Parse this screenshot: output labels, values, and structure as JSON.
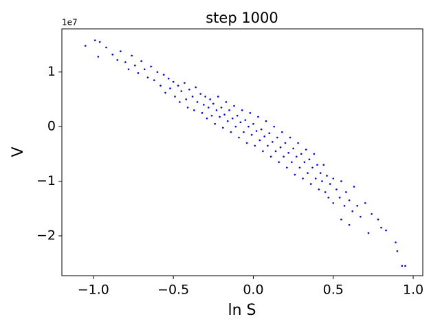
{
  "chart_data": {
    "type": "scatter",
    "title": "step 1000",
    "x_label": "ln S",
    "y_label": "V",
    "y_offset_label": "1e7",
    "color": "#0000ff",
    "xlim": [
      -1.197,
      1.06
    ],
    "ylim": [
      -2.73,
      1.79
    ],
    "xticks": [
      {
        "value": -1.0,
        "label": "−1.0"
      },
      {
        "value": -0.5,
        "label": "−0.5"
      },
      {
        "value": 0.0,
        "label": "0.0"
      },
      0.5,
      {
        "value": 1.0,
        "label": "1.0"
      }
    ],
    "yticks": [
      {
        "value": -2,
        "label": "−2"
      },
      {
        "value": -1,
        "label": "−1"
      },
      0,
      1
    ],
    "x": [
      -1.05,
      -0.99,
      -0.96,
      -0.97,
      -0.92,
      -0.88,
      -0.85,
      -0.83,
      -0.8,
      -0.78,
      -0.76,
      -0.74,
      -0.72,
      -0.7,
      -0.68,
      -0.66,
      -0.64,
      -0.62,
      -0.6,
      -0.58,
      -0.56,
      -0.55,
      -0.53,
      -0.52,
      -0.5,
      -0.49,
      -0.47,
      -0.46,
      -0.45,
      -0.43,
      -0.42,
      -0.41,
      -0.4,
      -0.38,
      -0.37,
      -0.36,
      -0.35,
      -0.33,
      -0.32,
      -0.31,
      -0.3,
      -0.29,
      -0.28,
      -0.27,
      -0.26,
      -0.25,
      -0.24,
      -0.23,
      -0.22,
      -0.21,
      -0.2,
      -0.19,
      -0.18,
      -0.17,
      -0.16,
      -0.15,
      -0.14,
      -0.13,
      -0.12,
      -0.11,
      -0.1,
      -0.09,
      -0.08,
      -0.07,
      -0.06,
      -0.05,
      -0.04,
      -0.03,
      -0.02,
      -0.01,
      0.0,
      0.01,
      0.02,
      0.03,
      0.04,
      0.05,
      0.06,
      0.07,
      0.08,
      0.09,
      0.1,
      0.11,
      0.12,
      0.13,
      0.14,
      0.15,
      0.16,
      0.17,
      0.18,
      0.19,
      0.2,
      0.21,
      0.22,
      0.23,
      0.24,
      0.25,
      0.26,
      0.27,
      0.28,
      0.29,
      0.3,
      0.31,
      0.32,
      0.33,
      0.34,
      0.35,
      0.36,
      0.37,
      0.38,
      0.39,
      0.4,
      0.41,
      0.42,
      0.43,
      0.44,
      0.45,
      0.46,
      0.47,
      0.48,
      0.5,
      0.5,
      0.52,
      0.54,
      0.55,
      0.57,
      0.58,
      0.6,
      0.62,
      0.63,
      0.65,
      0.67,
      0.7,
      0.72,
      0.74,
      0.78,
      0.8,
      0.83,
      0.89,
      0.9,
      0.93,
      0.95,
      0.55,
      0.6
    ],
    "y": [
      1.48,
      1.58,
      1.55,
      1.28,
      1.45,
      1.32,
      1.22,
      1.38,
      1.18,
      1.05,
      1.3,
      1.12,
      0.98,
      1.2,
      1.05,
      0.9,
      1.1,
      0.85,
      1.0,
      0.75,
      0.95,
      0.62,
      0.88,
      0.7,
      0.82,
      0.55,
      0.75,
      0.45,
      0.65,
      0.8,
      0.5,
      0.35,
      0.68,
      0.55,
      0.3,
      0.72,
      0.45,
      0.6,
      0.25,
      0.4,
      0.55,
      0.15,
      0.35,
      0.5,
      0.2,
      0.42,
      0.05,
      0.3,
      0.55,
      0.18,
      0.35,
      -0.02,
      0.22,
      0.45,
      0.1,
      0.3,
      -0.1,
      0.15,
      0.38,
      0.0,
      0.2,
      -0.2,
      0.08,
      0.3,
      -0.1,
      0.12,
      -0.3,
      0.0,
      0.25,
      -0.15,
      0.05,
      -0.35,
      -0.08,
      0.18,
      -0.25,
      -0.05,
      -0.45,
      -0.18,
      0.1,
      -0.35,
      -0.12,
      -0.55,
      -0.28,
      0.0,
      -0.45,
      -0.2,
      -0.65,
      -0.38,
      -0.1,
      -0.55,
      -0.3,
      -0.75,
      -0.48,
      -0.2,
      -0.65,
      -0.4,
      -0.88,
      -0.55,
      -0.3,
      -0.75,
      -0.5,
      -0.95,
      -0.65,
      -0.42,
      -0.85,
      -0.6,
      -1.05,
      -0.75,
      -0.5,
      -0.95,
      -0.7,
      -1.15,
      -0.85,
      -1.0,
      -0.7,
      -1.2,
      -0.9,
      -1.3,
      -1.05,
      -0.95,
      -1.4,
      -1.15,
      -1.3,
      -1.0,
      -1.45,
      -1.2,
      -1.35,
      -1.55,
      -1.1,
      -1.45,
      -1.65,
      -1.4,
      -1.95,
      -1.6,
      -1.7,
      -1.85,
      -1.9,
      -2.12,
      -2.28,
      -2.55,
      -2.55,
      -1.7,
      -1.8
    ]
  }
}
